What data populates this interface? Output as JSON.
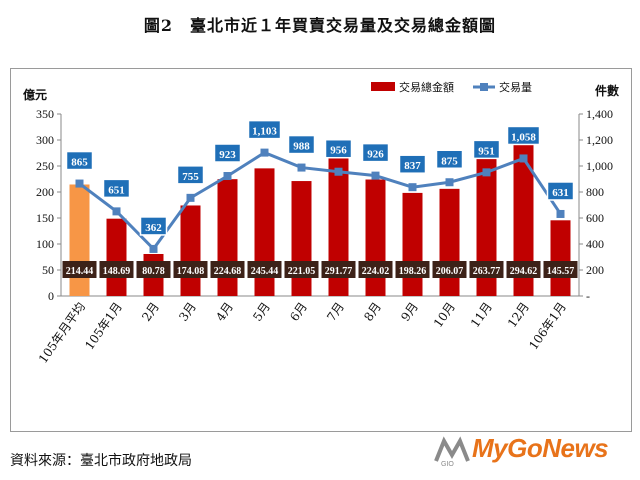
{
  "title": "圖2　臺北市近１年買賣交易量及交易總金額圖",
  "source": "資料來源：臺北市政府地政局",
  "logo": {
    "text": "MyGoNews",
    "brand_color": "#e8731a"
  },
  "chart_data": {
    "type": "bar",
    "categories": [
      "105年月平均",
      "105年1月",
      "2月",
      "3月",
      "4月",
      "5月",
      "6月",
      "7月",
      "8月",
      "9月",
      "10月",
      "11月",
      "12月",
      "106年1月"
    ],
    "series": [
      {
        "name": "交易總金額",
        "kind": "bar",
        "axis": "left",
        "values": [
          214.44,
          148.69,
          80.78,
          174.08,
          224.68,
          245.44,
          221.05,
          291.77,
          224.02,
          198.26,
          206.07,
          263.77,
          294.62,
          145.57
        ],
        "labels": [
          "214.44",
          "148.69",
          "80.78",
          "174.08",
          "224.68",
          "245.44",
          "221.05",
          "291.77",
          "224.02",
          "198.26",
          "206.07",
          "263.77",
          "294.62",
          "145.57"
        ],
        "color": "#c00000",
        "first_bar_color": "#f79646"
      },
      {
        "name": "交易量",
        "kind": "line",
        "axis": "right",
        "values": [
          865,
          651,
          362,
          755,
          923,
          1103,
          988,
          956,
          926,
          837,
          875,
          951,
          1058,
          631
        ],
        "labels": [
          "865",
          "651",
          "362",
          "755",
          "923",
          "1,103",
          "988",
          "956",
          "926",
          "837",
          "875",
          "951",
          "1,058",
          "631"
        ],
        "color": "#4f81bd"
      }
    ],
    "left_axis": {
      "unit": "億元",
      "min": 0,
      "max": 350,
      "step": 50,
      "ticks": [
        "0",
        "50",
        "100",
        "150",
        "200",
        "250",
        "300",
        "350"
      ]
    },
    "right_axis": {
      "unit": "件數",
      "min": 0,
      "max": 1400,
      "step": 200,
      "ticks": [
        "-",
        "200",
        "400",
        "600",
        "800",
        "1,000",
        "1,200",
        "1,400"
      ]
    },
    "legend_position": "top-right",
    "grid": false,
    "colors": {
      "bar_label_bg": "#3d2218",
      "line_label_bg": "#1f6fb7"
    }
  }
}
